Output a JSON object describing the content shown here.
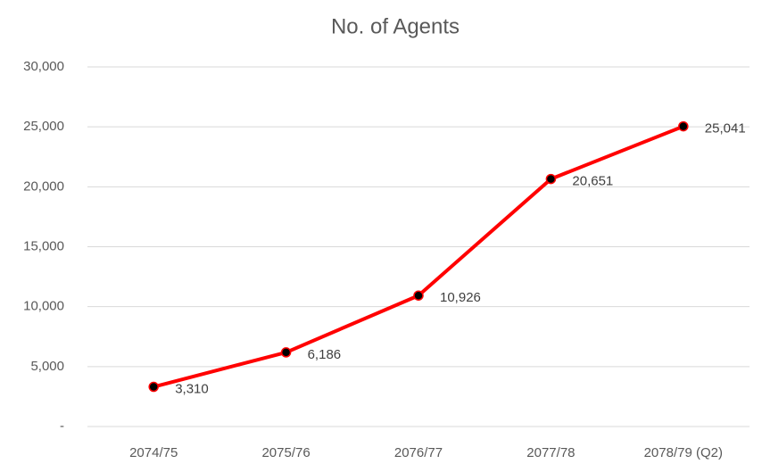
{
  "chart_data": {
    "type": "line",
    "title": "No. of Agents",
    "categories": [
      "2074/75",
      "2075/76",
      "2076/77",
      "2077/78",
      "2078/79 (Q2)"
    ],
    "series": [
      {
        "name": "No. of Agents",
        "color": "#ff0000",
        "marker_color": "#000000",
        "values": [
          3310,
          6186,
          10926,
          20651,
          25041
        ],
        "value_labels": [
          "3,310",
          "6,186",
          "10,926",
          "20,651",
          "25,041"
        ]
      }
    ],
    "ylim": [
      0,
      30000
    ],
    "yticks": [
      {
        "value": 0,
        "label": "-"
      },
      {
        "value": 5000,
        "label": "5,000"
      },
      {
        "value": 10000,
        "label": "10,000"
      },
      {
        "value": 15000,
        "label": "15,000"
      },
      {
        "value": 20000,
        "label": "20,000"
      },
      {
        "value": 25000,
        "label": "25,000"
      },
      {
        "value": 30000,
        "label": "30,000"
      }
    ],
    "grid": true
  }
}
